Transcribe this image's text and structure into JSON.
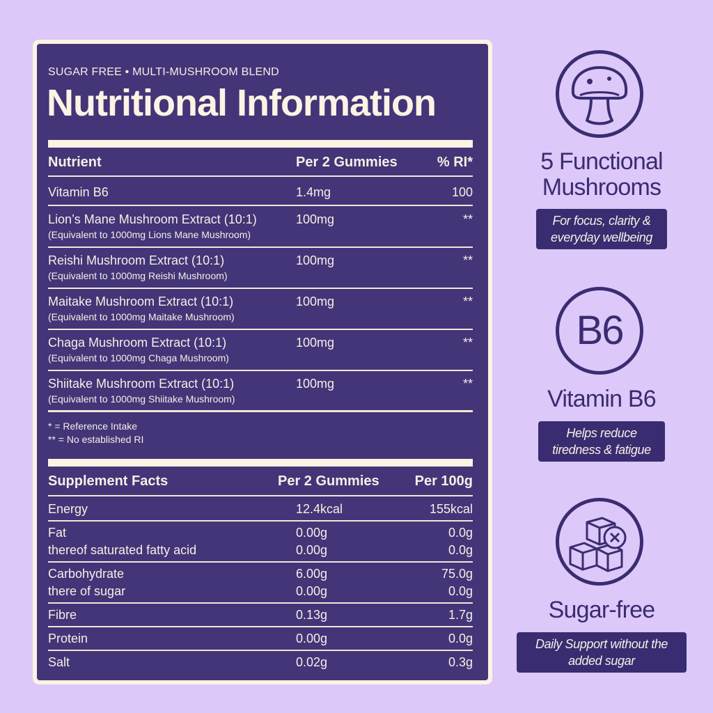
{
  "panel": {
    "tagline": "SUGAR FREE • MULTI-MUSHROOM BLEND",
    "title": "Nutritional Information",
    "nutrients": {
      "headers": [
        "Nutrient",
        "Per 2 Gummies",
        "% RI*"
      ],
      "rows": [
        {
          "name": "Vitamin B6",
          "sub": "",
          "amount": "1.4mg",
          "ri": "100"
        },
        {
          "name": "Lion’s Mane Mushroom Extract (10:1)",
          "sub": "(Equivalent to 1000mg Lions Mane Mushroom)",
          "amount": "100mg",
          "ri": "**"
        },
        {
          "name": "Reishi Mushroom Extract (10:1)",
          "sub": "(Equivalent to 1000mg Reishi Mushroom)",
          "amount": "100mg",
          "ri": "**"
        },
        {
          "name": "Maitake Mushroom Extract (10:1)",
          "sub": "(Equivalent to 1000mg Maitake Mushroom)",
          "amount": "100mg",
          "ri": "**"
        },
        {
          "name": "Chaga Mushroom Extract (10:1)",
          "sub": "(Equivalent to 1000mg Chaga Mushroom)",
          "amount": "100mg",
          "ri": "**"
        },
        {
          "name": "Shiitake Mushroom Extract (10:1)",
          "sub": "(Equivalent to 1000mg Shiitake Mushroom)",
          "amount": "100mg",
          "ri": "**"
        }
      ]
    },
    "notes": [
      "* = Reference Intake",
      "** = No established RI"
    ],
    "facts": {
      "headers": [
        "Supplement Facts",
        "Per 2 Gummies",
        "Per 100g"
      ],
      "rows": [
        {
          "name": "Energy",
          "per2": "12.4kcal",
          "per100": "155kcal"
        },
        {
          "name": "Fat",
          "per2": "0.00g",
          "per100": "0.0g"
        },
        {
          "name": "thereof saturated fatty acid",
          "per2": "0.00g",
          "per100": "0.0g"
        },
        {
          "name": "Carbohydrate",
          "per2": "6.00g",
          "per100": "75.0g"
        },
        {
          "name": "there of sugar",
          "per2": "0.00g",
          "per100": "0.0g"
        },
        {
          "name": "Fibre",
          "per2": "0.13g",
          "per100": "1.7g"
        },
        {
          "name": "Protein",
          "per2": "0.00g",
          "per100": "0.0g"
        },
        {
          "name": "Salt",
          "per2": "0.02g",
          "per100": "0.3g"
        }
      ]
    }
  },
  "features": [
    {
      "icon": "mushroom-icon",
      "title_line1": "5 Functional",
      "title_line2": "Mushrooms",
      "badge_line1": "For focus, clarity &",
      "badge_line2": "everyday wellbeing"
    },
    {
      "icon": "b6-icon",
      "icon_text": "B6",
      "title_line1": "Vitamin B6",
      "badge_line1": "Helps reduce",
      "badge_line2": "tiredness & fatigue"
    },
    {
      "icon": "sugar-cubes-icon",
      "title_line1": "Sugar-free",
      "badge_line1": "Daily Support without the",
      "badge_line2": "added sugar"
    }
  ],
  "colors": {
    "background": "#dcc8f9",
    "panel": "#433578",
    "cream": "#fdf3e4",
    "accent": "#3a2c70"
  }
}
